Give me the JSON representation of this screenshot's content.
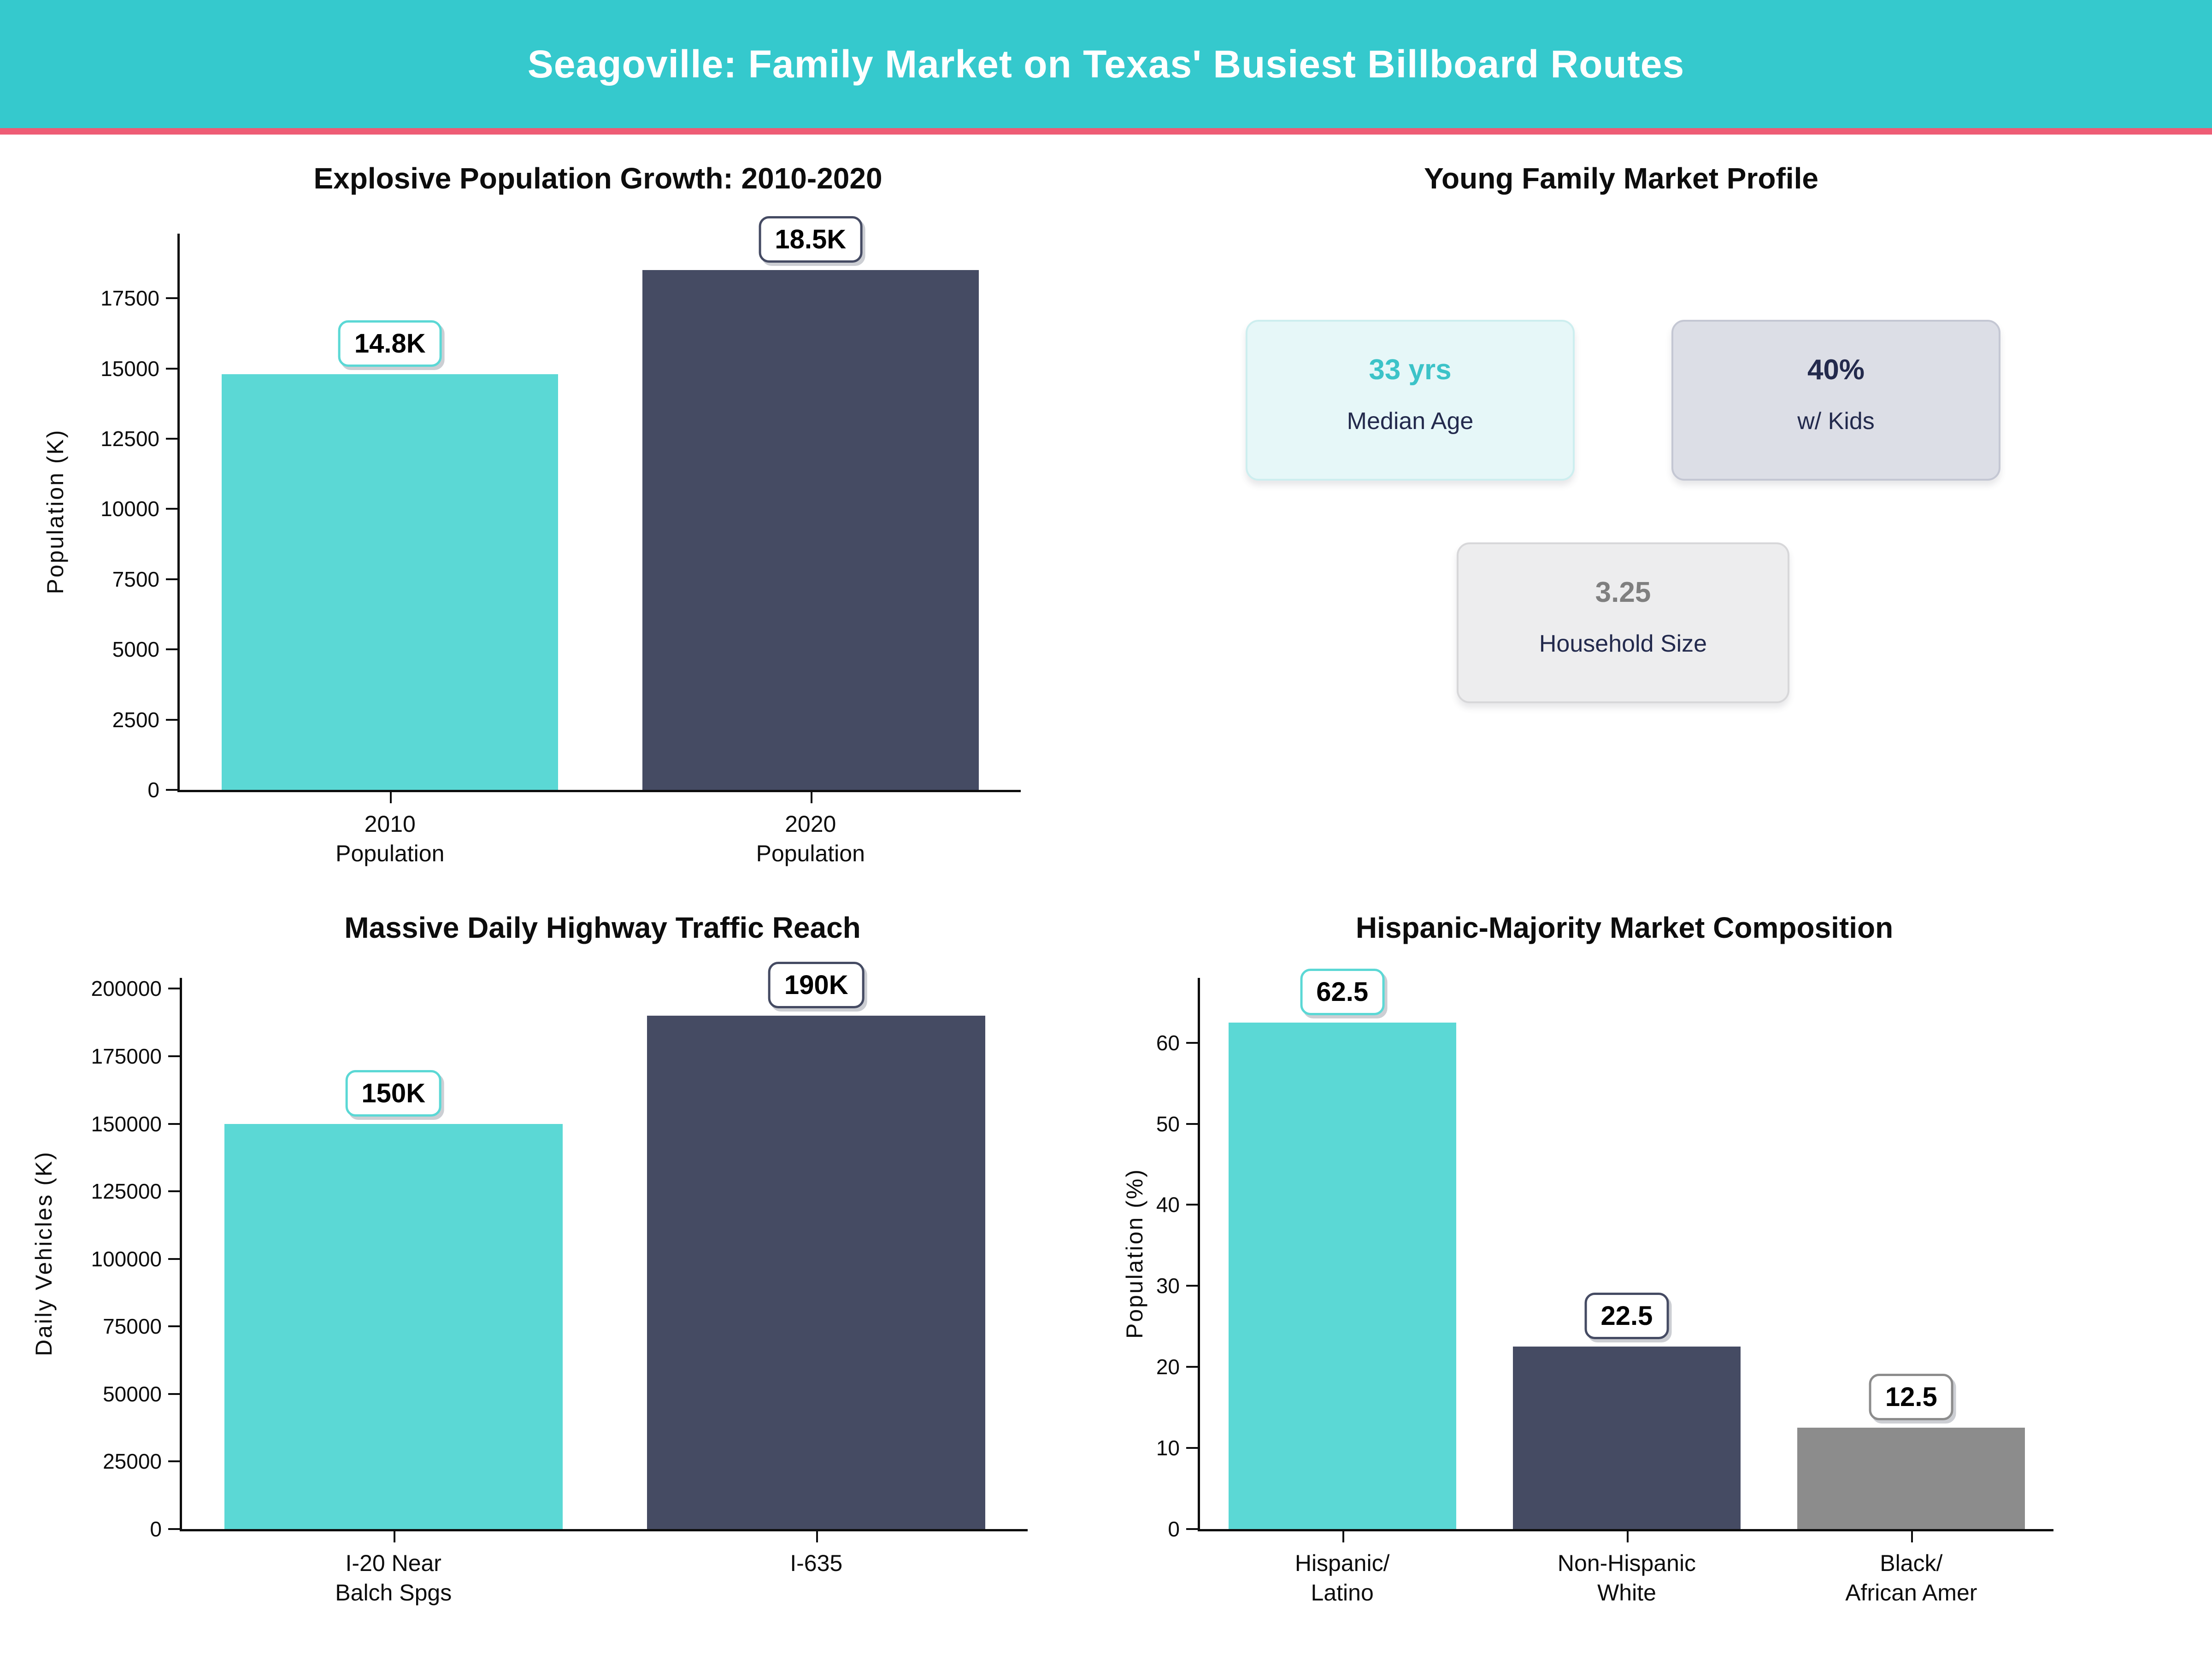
{
  "header": {
    "title": "Seagoville: Family Market on Texas' Busiest Billboard Routes"
  },
  "colors": {
    "header_bg": "#35c9cd",
    "header_accent": "#ee5c75",
    "teal": "#5bd8d5",
    "navy": "#454b63",
    "gray": "#8c8c8c",
    "dark_text": "#232a4d",
    "teal_text": "#3cc3c8",
    "gray_text": "#7f7f7f",
    "axis": "#0d0d0d"
  },
  "profile": {
    "title": "Young Family Market Profile",
    "cards": [
      {
        "value": "33 yrs",
        "label": "Median Age",
        "value_color": "teal_text",
        "bg": "#e6f7f8",
        "border": "#cdeeef"
      },
      {
        "value": "40%",
        "label": "w/ Kids",
        "value_color": "dark_text",
        "bg": "#dcdee6",
        "border": "#c4c7d3"
      },
      {
        "value": "3.25",
        "label": "Household Size",
        "value_color": "gray_text",
        "bg": "#ededee",
        "border": "#d7d7d9"
      }
    ]
  },
  "chart_data": [
    {
      "id": "population",
      "type": "bar",
      "title": "Explosive Population Growth: 2010-2020",
      "xlabel": "",
      "ylabel": "Population (K)",
      "categories": [
        "2010\nPopulation",
        "2020\nPopulation"
      ],
      "values": [
        14800,
        18500
      ],
      "bar_labels": [
        "14.8K",
        "18.5K"
      ],
      "bar_colors": [
        "teal",
        "navy"
      ],
      "yticks": [
        0,
        2500,
        5000,
        7500,
        10000,
        12500,
        15000,
        17500
      ],
      "ylim": [
        0,
        19800
      ],
      "grid": false,
      "legend": "none"
    },
    {
      "id": "traffic",
      "type": "bar",
      "title": "Massive Daily Highway Traffic Reach",
      "xlabel": "",
      "ylabel": "Daily Vehicles (K)",
      "categories": [
        "I-20 Near\nBalch Spgs",
        "I-635"
      ],
      "values": [
        150000,
        190000
      ],
      "bar_labels": [
        "150K",
        "190K"
      ],
      "bar_colors": [
        "teal",
        "navy"
      ],
      "yticks": [
        0,
        25000,
        50000,
        75000,
        100000,
        125000,
        150000,
        175000,
        200000
      ],
      "ylim": [
        0,
        204000
      ],
      "grid": false,
      "legend": "none"
    },
    {
      "id": "ethnicity",
      "type": "bar",
      "title": "Hispanic-Majority Market Composition",
      "xlabel": "",
      "ylabel": "Population (%)",
      "categories": [
        "Hispanic/\nLatino",
        "Non-Hispanic\nWhite",
        "Black/\nAfrican Amer"
      ],
      "values": [
        62.5,
        22.5,
        12.5
      ],
      "bar_labels": [
        "62.5",
        "22.5",
        "12.5"
      ],
      "bar_colors": [
        "teal",
        "navy",
        "gray"
      ],
      "yticks": [
        0,
        10,
        20,
        30,
        40,
        50,
        60
      ],
      "ylim": [
        0,
        68
      ],
      "grid": false,
      "legend": "none"
    }
  ]
}
